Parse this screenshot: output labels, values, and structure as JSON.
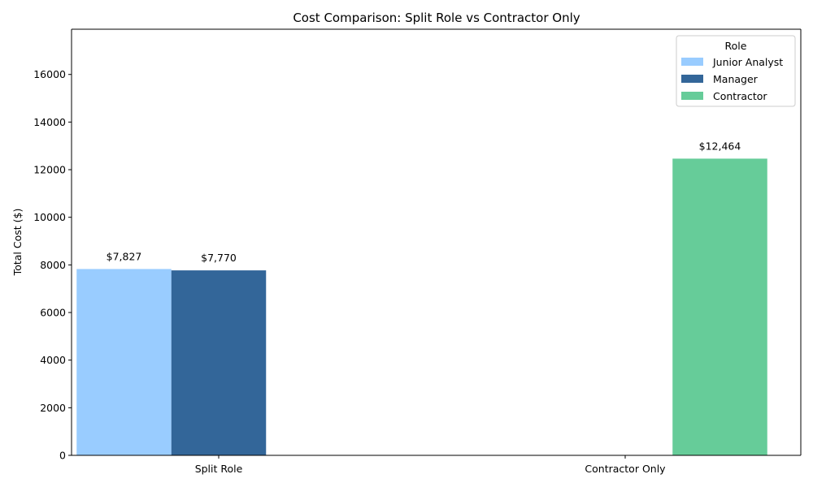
{
  "chart_data": {
    "type": "bar",
    "title": "Cost Comparison: Split Role vs Contractor Only",
    "xlabel": "",
    "ylabel": "Total Cost ($)",
    "ylim": [
      0,
      17900
    ],
    "yticks": [
      0,
      2000,
      4000,
      6000,
      8000,
      10000,
      12000,
      14000,
      16000
    ],
    "categories": [
      "Split Role",
      "Contractor Only"
    ],
    "grid": false,
    "legend": {
      "title": "Role",
      "placement": "top-right"
    },
    "series": [
      {
        "name": "Junior Analyst",
        "color": "#99ccff",
        "values": [
          7827,
          null
        ],
        "labels": [
          "$7,827",
          ""
        ]
      },
      {
        "name": "Manager",
        "color": "#336699",
        "values": [
          7770,
          null
        ],
        "labels": [
          "$7,770",
          ""
        ]
      },
      {
        "name": "Contractor",
        "color": "#66cc99",
        "values": [
          null,
          12464
        ],
        "labels": [
          "",
          "$12,464"
        ]
      }
    ]
  }
}
